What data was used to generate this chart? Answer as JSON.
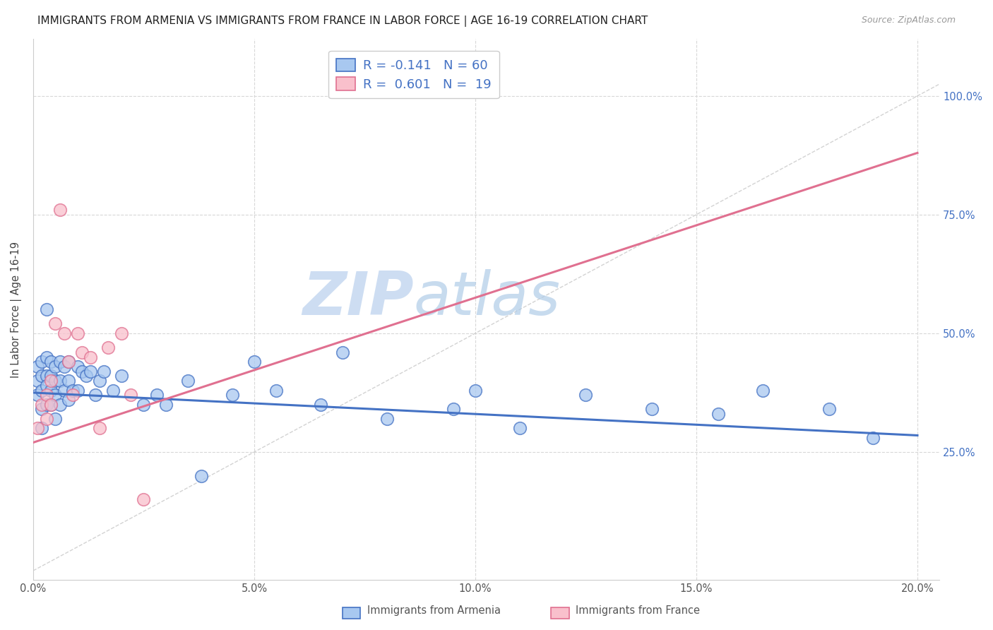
{
  "title": "IMMIGRANTS FROM ARMENIA VS IMMIGRANTS FROM FRANCE IN LABOR FORCE | AGE 16-19 CORRELATION CHART",
  "source": "Source: ZipAtlas.com",
  "ylabel": "In Labor Force | Age 16-19",
  "legend_armenia": "Immigrants from Armenia",
  "legend_france": "Immigrants from France",
  "R_armenia": -0.141,
  "N_armenia": 60,
  "R_france": 0.601,
  "N_france": 19,
  "xlim": [
    0.0,
    0.205
  ],
  "ylim": [
    -0.02,
    1.12
  ],
  "xtick_labels": [
    "0.0%",
    "5.0%",
    "10.0%",
    "15.0%",
    "20.0%"
  ],
  "xtick_vals": [
    0.0,
    0.05,
    0.1,
    0.15,
    0.2
  ],
  "ytick_labels": [
    "25.0%",
    "50.0%",
    "75.0%",
    "100.0%"
  ],
  "ytick_vals": [
    0.25,
    0.5,
    0.75,
    1.0
  ],
  "color_armenia_fill": "#A8C8F0",
  "color_armenia_edge": "#4472C4",
  "color_france_fill": "#F9C0CC",
  "color_france_edge": "#E07090",
  "color_line_armenia": "#4472C4",
  "color_line_france": "#E07090",
  "color_diag": "#C8C8C8",
  "color_grid": "#D8D8D8",
  "color_source": "#999999",
  "color_right_axis": "#4472C4",
  "color_legend_text": "#4472C4",
  "watermark_zip": "ZIP",
  "watermark_atlas": "atlas",
  "arm_line_x0": 0.0,
  "arm_line_y0": 0.375,
  "arm_line_x1": 0.2,
  "arm_line_y1": 0.285,
  "fra_line_x0": 0.0,
  "fra_line_y0": 0.27,
  "fra_line_x1": 0.2,
  "fra_line_y1": 0.88,
  "arm_x": [
    0.001,
    0.001,
    0.001,
    0.002,
    0.002,
    0.002,
    0.002,
    0.002,
    0.003,
    0.003,
    0.003,
    0.003,
    0.003,
    0.004,
    0.004,
    0.004,
    0.004,
    0.005,
    0.005,
    0.005,
    0.005,
    0.006,
    0.006,
    0.006,
    0.007,
    0.007,
    0.008,
    0.008,
    0.008,
    0.009,
    0.01,
    0.01,
    0.011,
    0.012,
    0.013,
    0.014,
    0.015,
    0.016,
    0.018,
    0.02,
    0.025,
    0.028,
    0.03,
    0.035,
    0.038,
    0.045,
    0.05,
    0.055,
    0.065,
    0.07,
    0.08,
    0.095,
    0.1,
    0.11,
    0.125,
    0.14,
    0.155,
    0.165,
    0.18,
    0.19
  ],
  "arm_y": [
    0.43,
    0.4,
    0.37,
    0.44,
    0.41,
    0.38,
    0.34,
    0.3,
    0.55,
    0.45,
    0.41,
    0.39,
    0.35,
    0.44,
    0.41,
    0.38,
    0.35,
    0.43,
    0.4,
    0.37,
    0.32,
    0.44,
    0.4,
    0.35,
    0.43,
    0.38,
    0.44,
    0.4,
    0.36,
    0.38,
    0.43,
    0.38,
    0.42,
    0.41,
    0.42,
    0.37,
    0.4,
    0.42,
    0.38,
    0.41,
    0.35,
    0.37,
    0.35,
    0.4,
    0.2,
    0.37,
    0.44,
    0.38,
    0.35,
    0.46,
    0.32,
    0.34,
    0.38,
    0.3,
    0.37,
    0.34,
    0.33,
    0.38,
    0.34,
    0.28
  ],
  "fra_x": [
    0.001,
    0.002,
    0.003,
    0.003,
    0.004,
    0.004,
    0.005,
    0.006,
    0.007,
    0.008,
    0.009,
    0.01,
    0.011,
    0.013,
    0.015,
    0.017,
    0.02,
    0.022,
    0.025
  ],
  "fra_y": [
    0.3,
    0.35,
    0.37,
    0.32,
    0.4,
    0.35,
    0.52,
    0.76,
    0.5,
    0.44,
    0.37,
    0.5,
    0.46,
    0.45,
    0.3,
    0.47,
    0.5,
    0.37,
    0.15
  ]
}
